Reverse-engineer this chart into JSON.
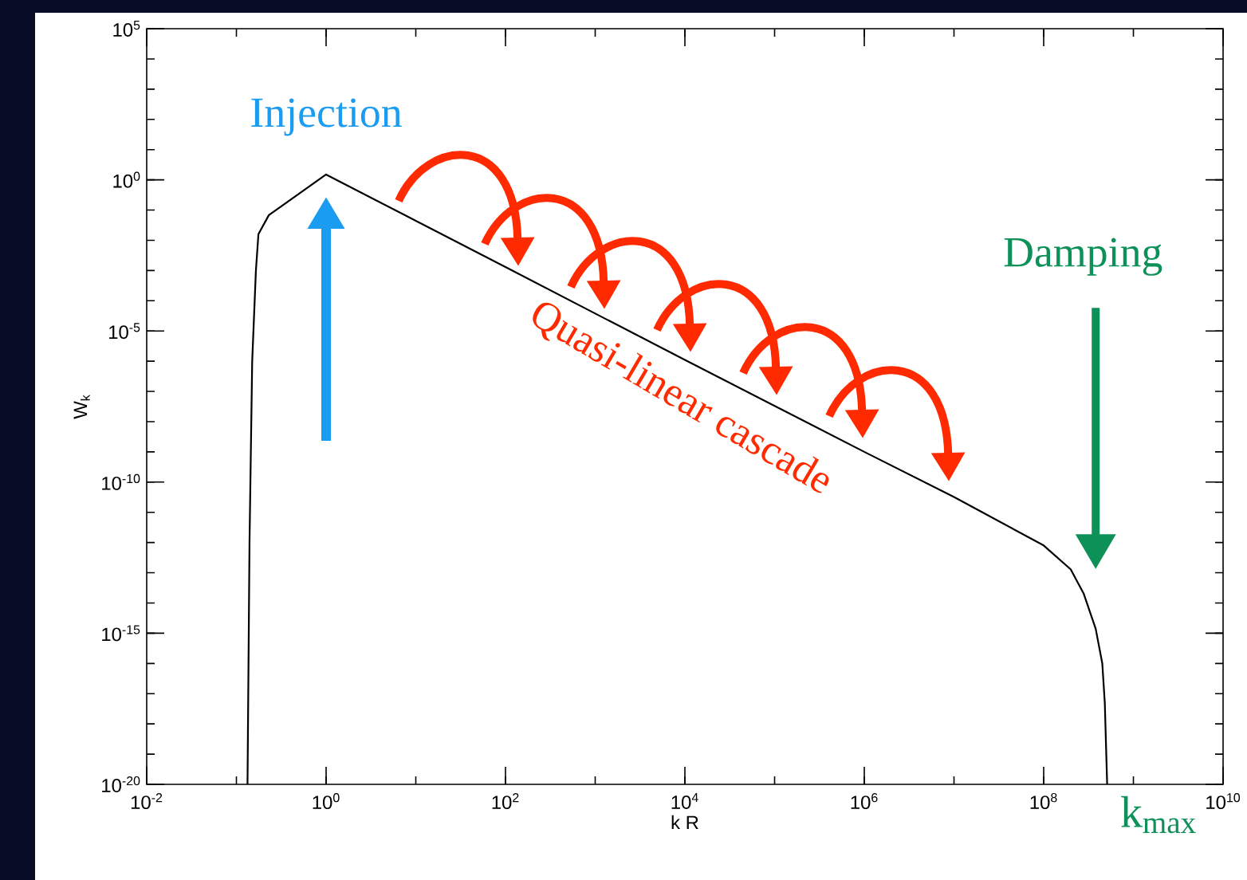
{
  "chart_data": {
    "type": "line",
    "xlabel": "k R",
    "ylabel": "W$_{k}$",
    "log": "xy",
    "marker": "none",
    "xlim": [
      0.01,
      10000000000.0
    ],
    "ylim": [
      1e-20,
      100000.0
    ],
    "xticks": [
      {
        "value": 0.01,
        "label": "10$^{-2}$"
      },
      {
        "value": 1,
        "label": "10$^{0}$"
      },
      {
        "value": 100,
        "label": "10$^{2}$"
      },
      {
        "value": 10000.0,
        "label": "10$^{4}$"
      },
      {
        "value": 1000000.0,
        "label": "10$^{6}$"
      },
      {
        "value": 100000000.0,
        "label": "10$^{8}$"
      },
      {
        "value": 10000000000.0,
        "label": "10$^{10}$"
      }
    ],
    "yticks": [
      {
        "value": 1e-20,
        "label": "10$^{-20}$"
      },
      {
        "value": 1e-15,
        "label": "10$^{-15}$"
      },
      {
        "value": 1e-10,
        "label": "10$^{-10}$"
      },
      {
        "value": 1e-05,
        "label": "10$^{-5}$"
      },
      {
        "value": 1,
        "label": "10$^{0}$"
      },
      {
        "value": 100000.0,
        "label": "10$^{5}$"
      }
    ],
    "series": [
      {
        "color": "#000000",
        "x": [
          0.133,
          0.14,
          0.15,
          0.165,
          0.176,
          0.23,
          1,
          10,
          100,
          10000.0,
          1000000.0,
          10000000.0,
          100000000.0,
          200000000.0,
          280000000.0,
          380000000.0,
          450000000.0,
          480000000.0,
          510000000.0
        ],
        "values": [
          1e-20,
          1e-12,
          1e-06,
          0.001,
          0.016,
          0.068,
          1.5,
          0.044,
          0.0013,
          1.1e-06,
          1e-09,
          3.2e-11,
          8e-13,
          1.3e-13,
          2e-14,
          1.4e-15,
          1e-16,
          5e-18,
          1e-20
        ]
      }
    ],
    "annotations": [
      {
        "text": "Injection",
        "x": 1,
        "y": 1.5
      },
      "Quasi-linear cascade",
      "Damping",
      {
        "text": "k$_{max}$",
        "x": 510000000.0,
        "y": 1e-20
      }
    ]
  }
}
